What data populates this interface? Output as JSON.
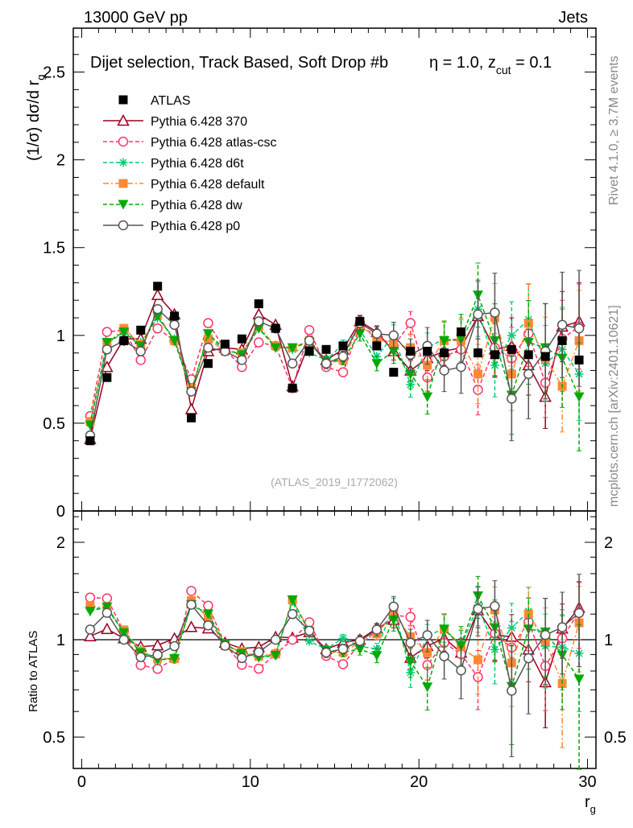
{
  "header": {
    "left": "13000 GeV pp",
    "right": "Jets"
  },
  "side_text": {
    "rivet": "Rivet 4.1.0, ≥ 3.7M events",
    "mcplots": "mcplots.cern.ch [arXiv:2401.10621]"
  },
  "chart_data": {
    "type": "line",
    "title_main": "Dijet selection, Track Based, Soft Drop #b",
    "title_eta": "η = 1.0, z",
    "title_sub": "cut",
    "title_end": " = 0.1",
    "analysis_label": "(ATLAS_2019_I1772062)",
    "ylabel": "(1/σ) dσ/d r",
    "ylabel_sub": "g",
    "xlabel": "r",
    "xlabel_sub": "g",
    "ratio_ylabel": "Ratio to ATLAS",
    "xlim": [
      -0.5,
      30.5
    ],
    "ylim": [
      0,
      2.75
    ],
    "ratio_ylim": [
      0.4,
      2.5
    ],
    "ratio_scale": "log",
    "xticks": [
      "0",
      "10",
      "20",
      "30"
    ],
    "xtick_values": [
      0,
      10,
      20,
      30
    ],
    "yticks": [
      "0",
      "0.5",
      "1",
      "1.5",
      "2",
      "2.5"
    ],
    "ytick_values": [
      0,
      0.5,
      1,
      1.5,
      2,
      2.5
    ],
    "ratio_yticks": [
      "0.5",
      "1",
      "2"
    ],
    "ratio_ytick_values": [
      0.5,
      1,
      2
    ],
    "legend_position": "top-left",
    "x": [
      0.5,
      1.5,
      2.5,
      3.5,
      4.5,
      5.5,
      6.5,
      7.5,
      8.5,
      9.5,
      10.5,
      11.5,
      12.5,
      13.5,
      14.5,
      15.5,
      16.5,
      17.5,
      18.5,
      19.5,
      20.5,
      21.5,
      22.5,
      23.5,
      24.5,
      25.5,
      26.5,
      27.5,
      28.5,
      29.5
    ],
    "errors": [
      0,
      0,
      0,
      0,
      0,
      0,
      0,
      0,
      0,
      0,
      0,
      0,
      0.01,
      0.01,
      0.02,
      0.02,
      0.03,
      0.03,
      0.05,
      0.06,
      0.07,
      0.08,
      0.1,
      0.13,
      0.15,
      0.16,
      0.17,
      0.18,
      0.2,
      0.22
    ],
    "reference": {
      "name": "ATLAS",
      "color": "#000000",
      "marker": "square-filled",
      "values": [
        0.4,
        0.76,
        0.97,
        1.03,
        1.28,
        1.11,
        0.53,
        0.84,
        0.95,
        0.98,
        1.18,
        1.04,
        0.7,
        0.91,
        0.92,
        0.94,
        1.08,
        0.94,
        0.79,
        0.91,
        0.91,
        0.9,
        1.02,
        0.9,
        0.89,
        0.92,
        0.89,
        0.88,
        0.97,
        0.86
      ]
    },
    "series": [
      {
        "name": "Pythia 6.428 370",
        "color": "#990022",
        "marker": "triangle-open",
        "dash": "",
        "values": [
          0.41,
          0.82,
          0.98,
          0.98,
          1.23,
          1.12,
          0.58,
          0.91,
          0.93,
          0.92,
          1.12,
          1.06,
          0.71,
          0.96,
          0.86,
          0.92,
          1.08,
          1.02,
          0.91,
          0.8,
          0.87,
          0.91,
          0.93,
          1.11,
          0.92,
          0.94,
          0.83,
          0.65,
          1.05,
          1.08
        ]
      },
      {
        "name": "Pythia 6.428 atlas-csc",
        "color": "#ff3366",
        "marker": "circle-open",
        "dash": "5,3",
        "values": [
          0.54,
          1.02,
          1.03,
          0.86,
          1.04,
          0.97,
          0.75,
          1.07,
          0.92,
          0.82,
          0.96,
          0.94,
          0.7,
          1.03,
          0.82,
          0.79,
          1.05,
          1.0,
          0.94,
          1.07,
          0.76,
          0.88,
          0.92,
          0.69,
          0.93,
          0.87,
          1.01,
          0.73,
          0.98,
          1.05
        ]
      },
      {
        "name": "Pythia 6.428 d6t",
        "color": "#00cc77",
        "marker": "asterisk",
        "dash": "5,3",
        "values": [
          0.5,
          0.95,
          1.02,
          0.96,
          1.1,
          0.98,
          0.68,
          1.0,
          0.91,
          0.9,
          1.04,
          0.94,
          0.92,
          0.9,
          0.86,
          0.95,
          1.03,
          0.88,
          1.0,
          0.72,
          0.93,
          0.98,
          0.97,
          1.15,
          0.83,
          1.0,
          1.09,
          0.84,
          0.92,
          0.78
        ]
      },
      {
        "name": "Pythia 6.428 default",
        "color": "#ff8833",
        "marker": "square-filled",
        "dash": "7,3,2,3",
        "values": [
          0.51,
          0.95,
          1.04,
          0.95,
          1.12,
          0.97,
          0.7,
          0.98,
          0.91,
          0.9,
          1.05,
          0.94,
          0.93,
          0.97,
          0.84,
          0.86,
          1.06,
          0.98,
          0.95,
          0.93,
          0.83,
          0.97,
          0.97,
          0.78,
          1.1,
          0.78,
          1.07,
          0.87,
          0.71,
          0.97
        ]
      },
      {
        "name": "Pythia 6.428 dw",
        "color": "#00aa00",
        "marker": "triangle-down-filled",
        "dash": "5,3",
        "values": [
          0.49,
          0.96,
          1.02,
          0.94,
          1.11,
          0.97,
          0.68,
          1.01,
          0.92,
          0.89,
          1.04,
          0.93,
          0.93,
          0.96,
          0.85,
          0.86,
          1.01,
          0.84,
          0.91,
          0.78,
          0.65,
          0.97,
          0.98,
          1.23,
          0.97,
          0.66,
          0.96,
          0.93,
          0.87,
          0.65
        ]
      },
      {
        "name": "Pythia 6.428 p0",
        "color": "#555555",
        "marker": "circle-open",
        "dash": "",
        "values": [
          0.43,
          0.92,
          0.97,
          0.91,
          1.15,
          1.06,
          0.68,
          0.93,
          0.91,
          0.86,
          1.08,
          1.04,
          0.84,
          0.97,
          0.84,
          0.88,
          1.07,
          1.01,
          1.0,
          0.89,
          0.94,
          0.8,
          0.82,
          1.12,
          1.13,
          0.64,
          0.78,
          0.91,
          1.06,
          1.04
        ]
      }
    ]
  }
}
